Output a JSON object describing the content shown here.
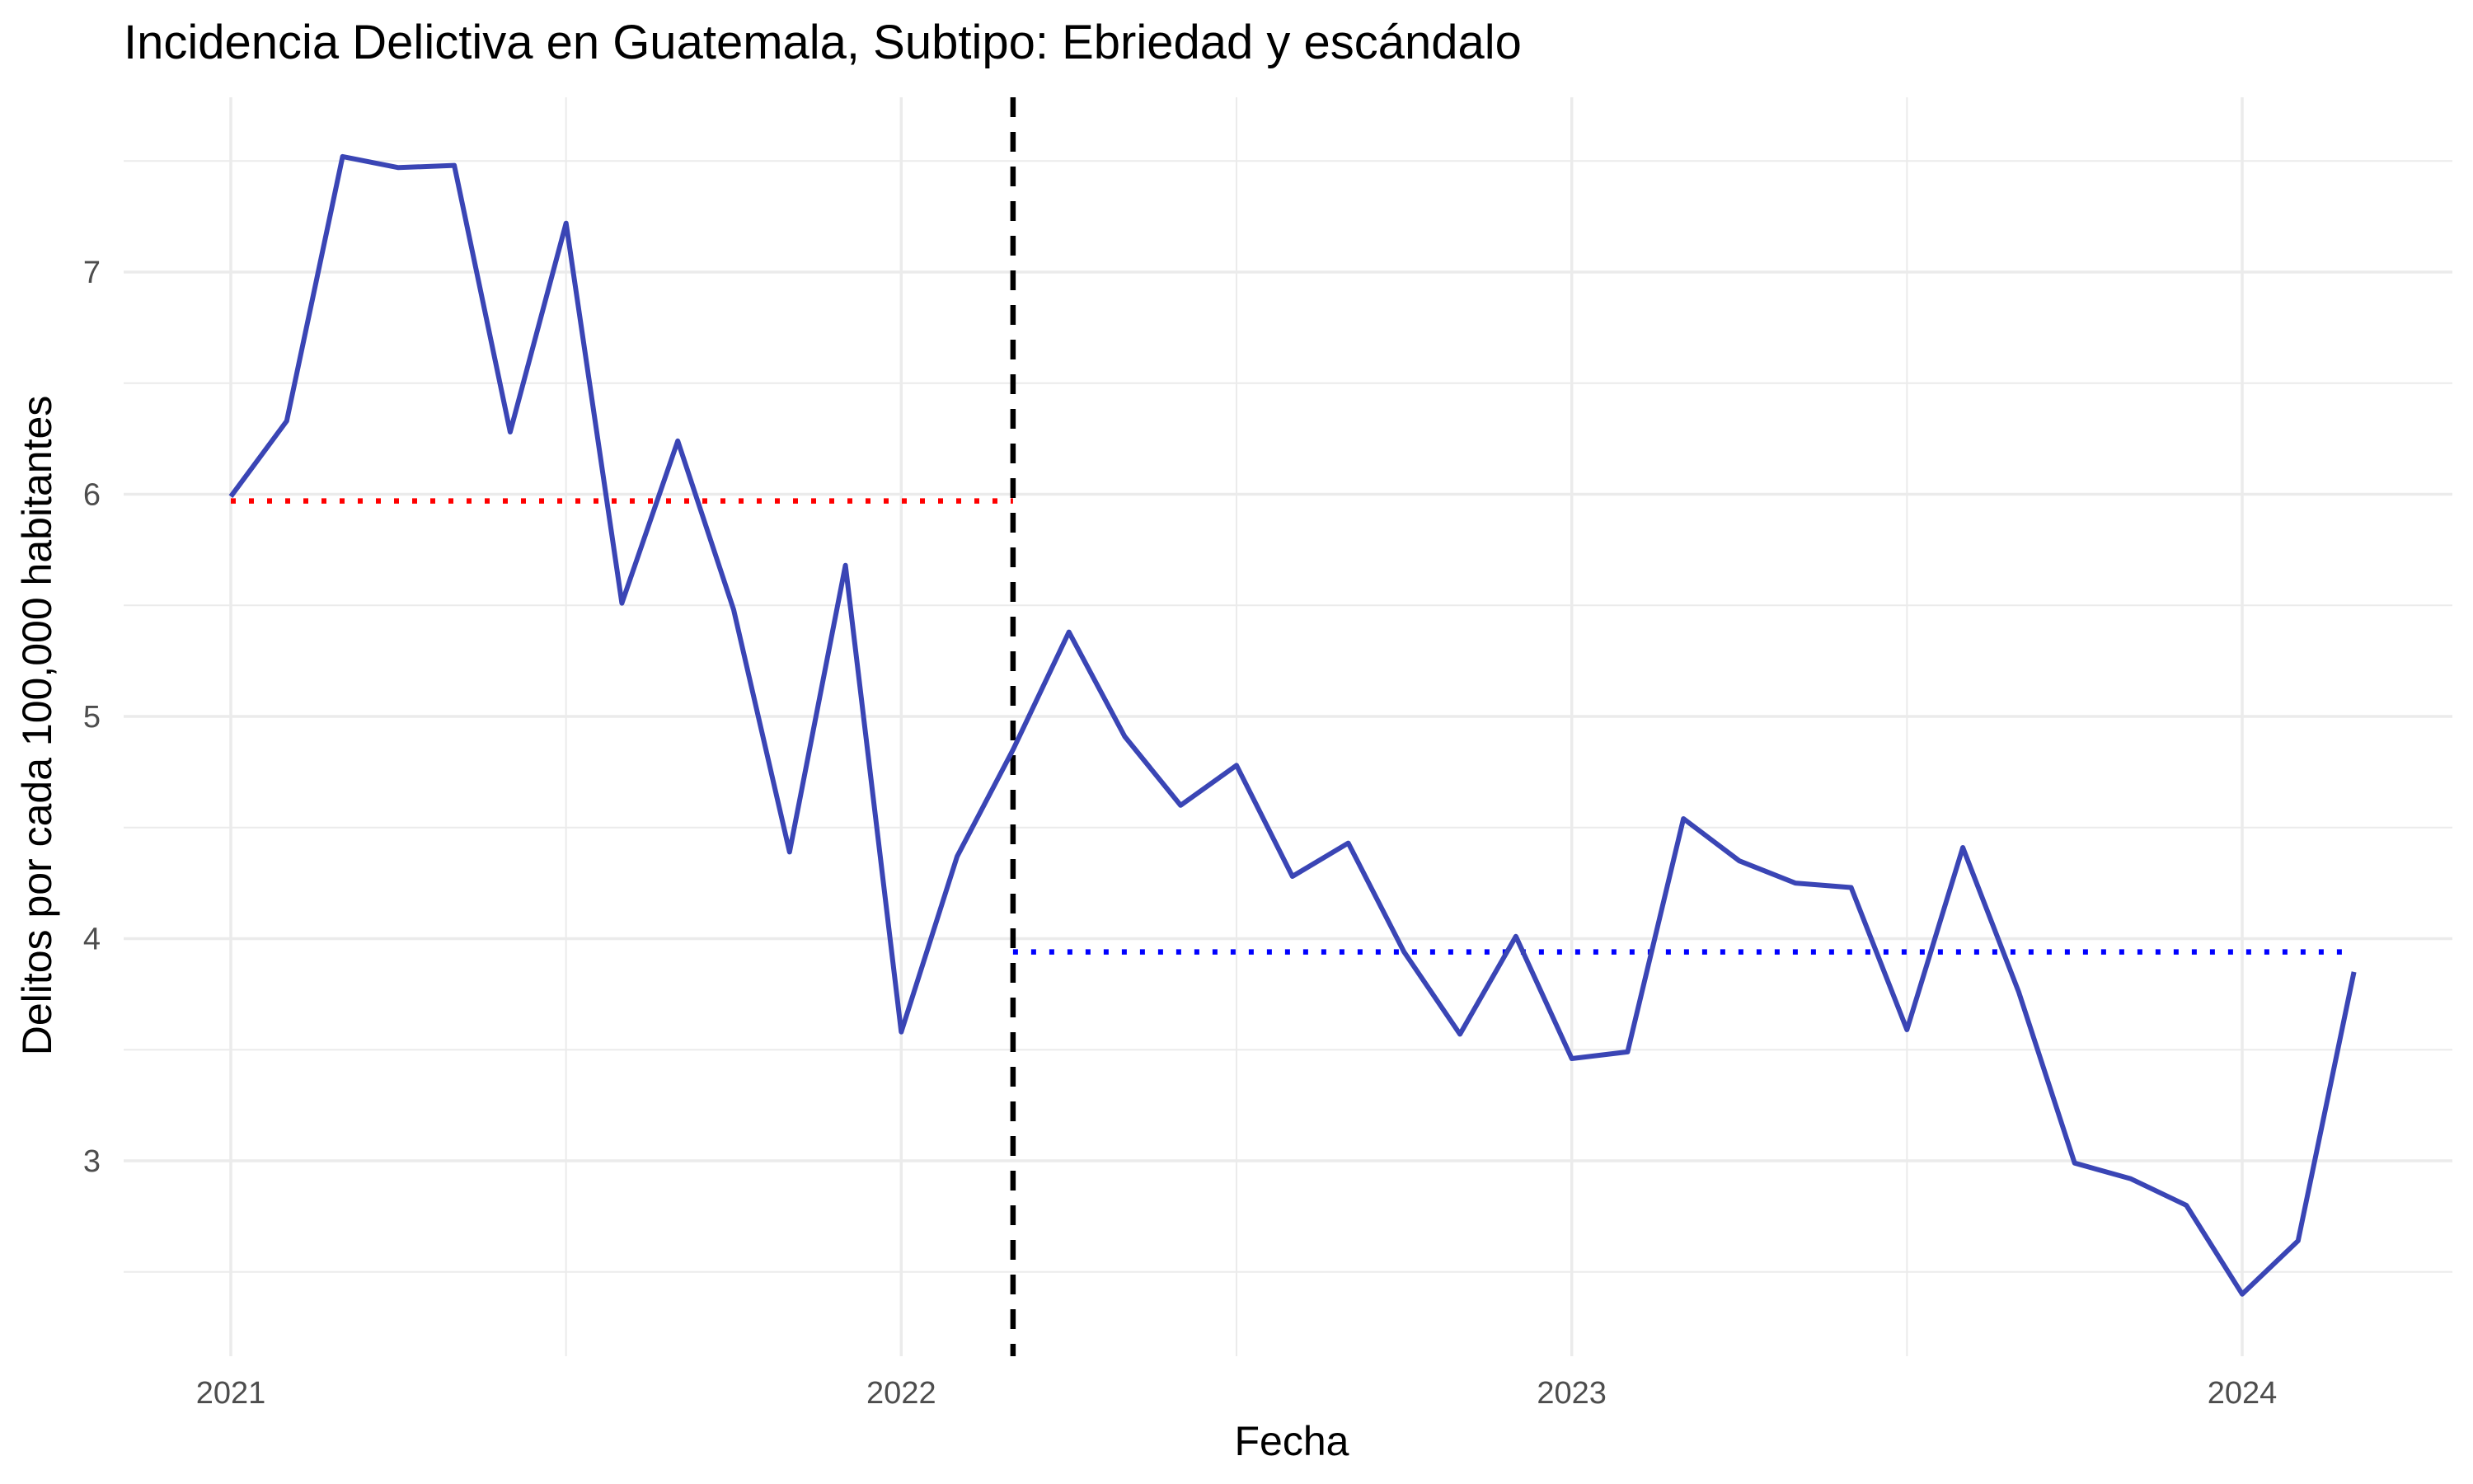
{
  "chart_data": {
    "type": "line",
    "title": "Incidencia Delictiva en Guatemala, Subtipo: Ebriedad y escándalo",
    "xlabel": "Fecha",
    "ylabel": "Delitos por cada 100,000 habitantes",
    "x_ticks": [
      "2021",
      "2022",
      "2023",
      "2024"
    ],
    "y_ticks": [
      3,
      4,
      5,
      6,
      7
    ],
    "xlim": [
      2020.88,
      2024.3
    ],
    "ylim": [
      2.2,
      7.8
    ],
    "series": [
      {
        "name": "Ebriedad y escándalo",
        "color": "#3a45b5",
        "x": [
          "2021-01",
          "2021-02",
          "2021-03",
          "2021-04",
          "2021-05",
          "2021-06",
          "2021-07",
          "2021-08",
          "2021-09",
          "2021-10",
          "2021-11",
          "2021-12",
          "2022-01",
          "2022-02",
          "2022-03",
          "2022-04",
          "2022-05",
          "2022-06",
          "2022-07",
          "2022-08",
          "2022-09",
          "2022-10",
          "2022-11",
          "2022-12",
          "2023-01",
          "2023-02",
          "2023-03",
          "2023-04",
          "2023-05",
          "2023-06",
          "2023-07",
          "2023-08",
          "2023-09",
          "2023-10",
          "2023-11",
          "2023-12",
          "2024-01",
          "2024-02",
          "2024-03"
        ],
        "values": [
          5.99,
          6.33,
          7.52,
          7.47,
          7.48,
          6.28,
          7.22,
          5.51,
          6.24,
          5.48,
          4.39,
          5.68,
          3.58,
          4.37,
          4.85,
          5.38,
          4.91,
          4.6,
          4.78,
          4.28,
          4.43,
          3.94,
          3.57,
          4.01,
          3.46,
          3.49,
          4.54,
          4.35,
          4.25,
          4.23,
          3.59,
          4.41,
          3.76,
          2.99,
          2.92,
          2.8,
          2.4,
          2.64,
          3.85
        ]
      }
    ],
    "reference_lines": [
      {
        "type": "vertical",
        "name": "intervention",
        "x": "2022-03",
        "style": "dashed",
        "color": "#000000"
      },
      {
        "type": "horizontal",
        "name": "pre-mean",
        "y": 5.97,
        "x_from": "2021-01",
        "x_to": "2022-03",
        "style": "dotted",
        "color": "#ff0000"
      },
      {
        "type": "horizontal",
        "name": "post-mean",
        "y": 3.94,
        "x_from": "2022-03",
        "x_to": "2024-03",
        "style": "dotted",
        "color": "#0000ff"
      }
    ]
  }
}
